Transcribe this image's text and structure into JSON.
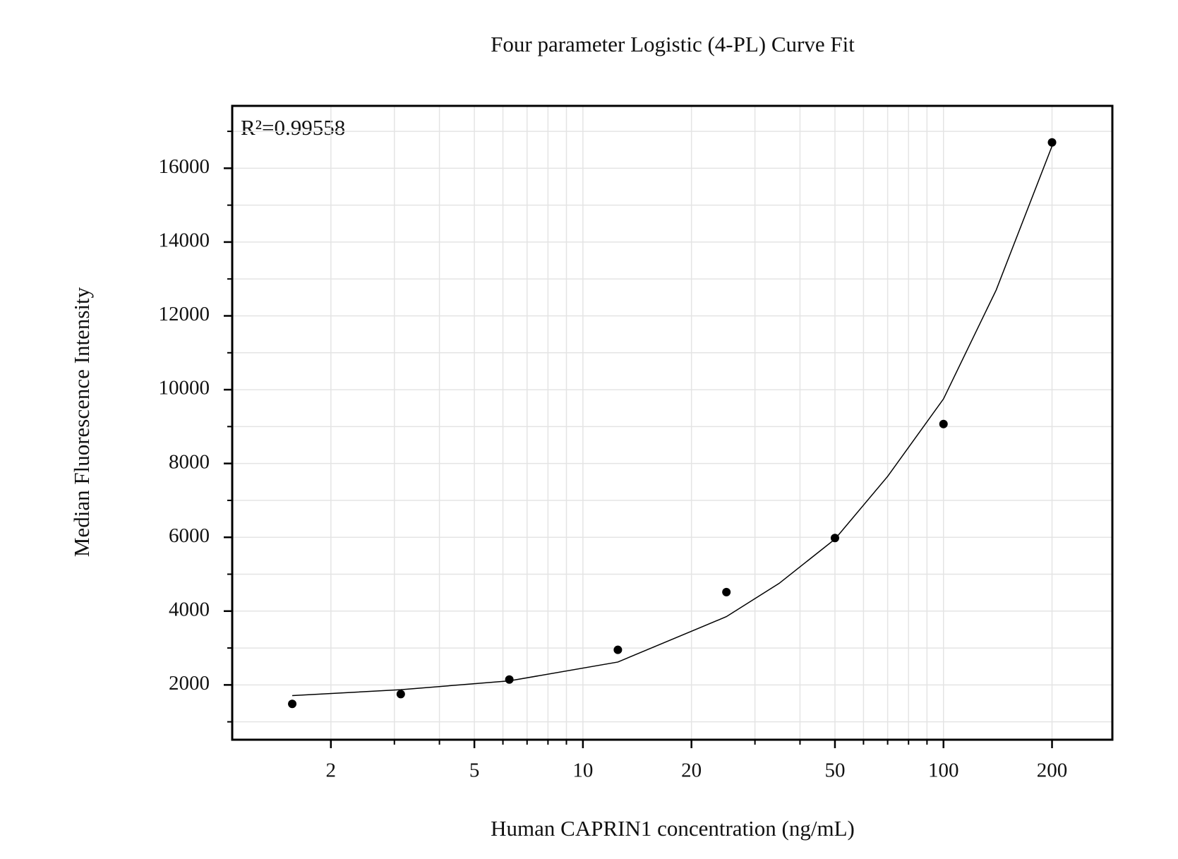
{
  "chart_data": {
    "type": "scatter",
    "title": "Four parameter Logistic (4-PL) Curve Fit",
    "x_label": "Human CAPRIN1 concentration (ng/mL)",
    "y_label": "Median Fluorescence Intensity",
    "annotation": "R²=0.99558",
    "x_log": true,
    "grid": true,
    "xlim": [
      1.065,
      294
    ],
    "ylim": [
      515,
      17690
    ],
    "xticks": [
      2,
      5,
      10,
      20,
      50,
      100,
      200
    ],
    "xminorticks": [
      3,
      4,
      6,
      7,
      8,
      9,
      30,
      40,
      60,
      70,
      80,
      90
    ],
    "yticks": [
      2000,
      4000,
      6000,
      8000,
      10000,
      12000,
      14000,
      16000
    ],
    "yminorticks": [
      1000,
      3000,
      5000,
      7000,
      9000,
      11000,
      13000,
      15000,
      17000
    ],
    "series": [
      {
        "kind": "points",
        "color": "#000000",
        "x": [
          1.5625,
          3.125,
          6.25,
          12.5,
          25,
          50,
          100,
          200
        ],
        "values": [
          1485,
          1750,
          2145,
          2950,
          4515,
          5980,
          9070,
          16700
        ]
      },
      {
        "kind": "curve",
        "color": "#000000",
        "x": [
          1.5625,
          3.125,
          6.25,
          12.5,
          25,
          35,
          50,
          70,
          100,
          140,
          200
        ],
        "values": [
          1710,
          1870,
          2110,
          2620,
          3850,
          4750,
          5950,
          7650,
          9750,
          12700,
          16600
        ]
      }
    ]
  }
}
